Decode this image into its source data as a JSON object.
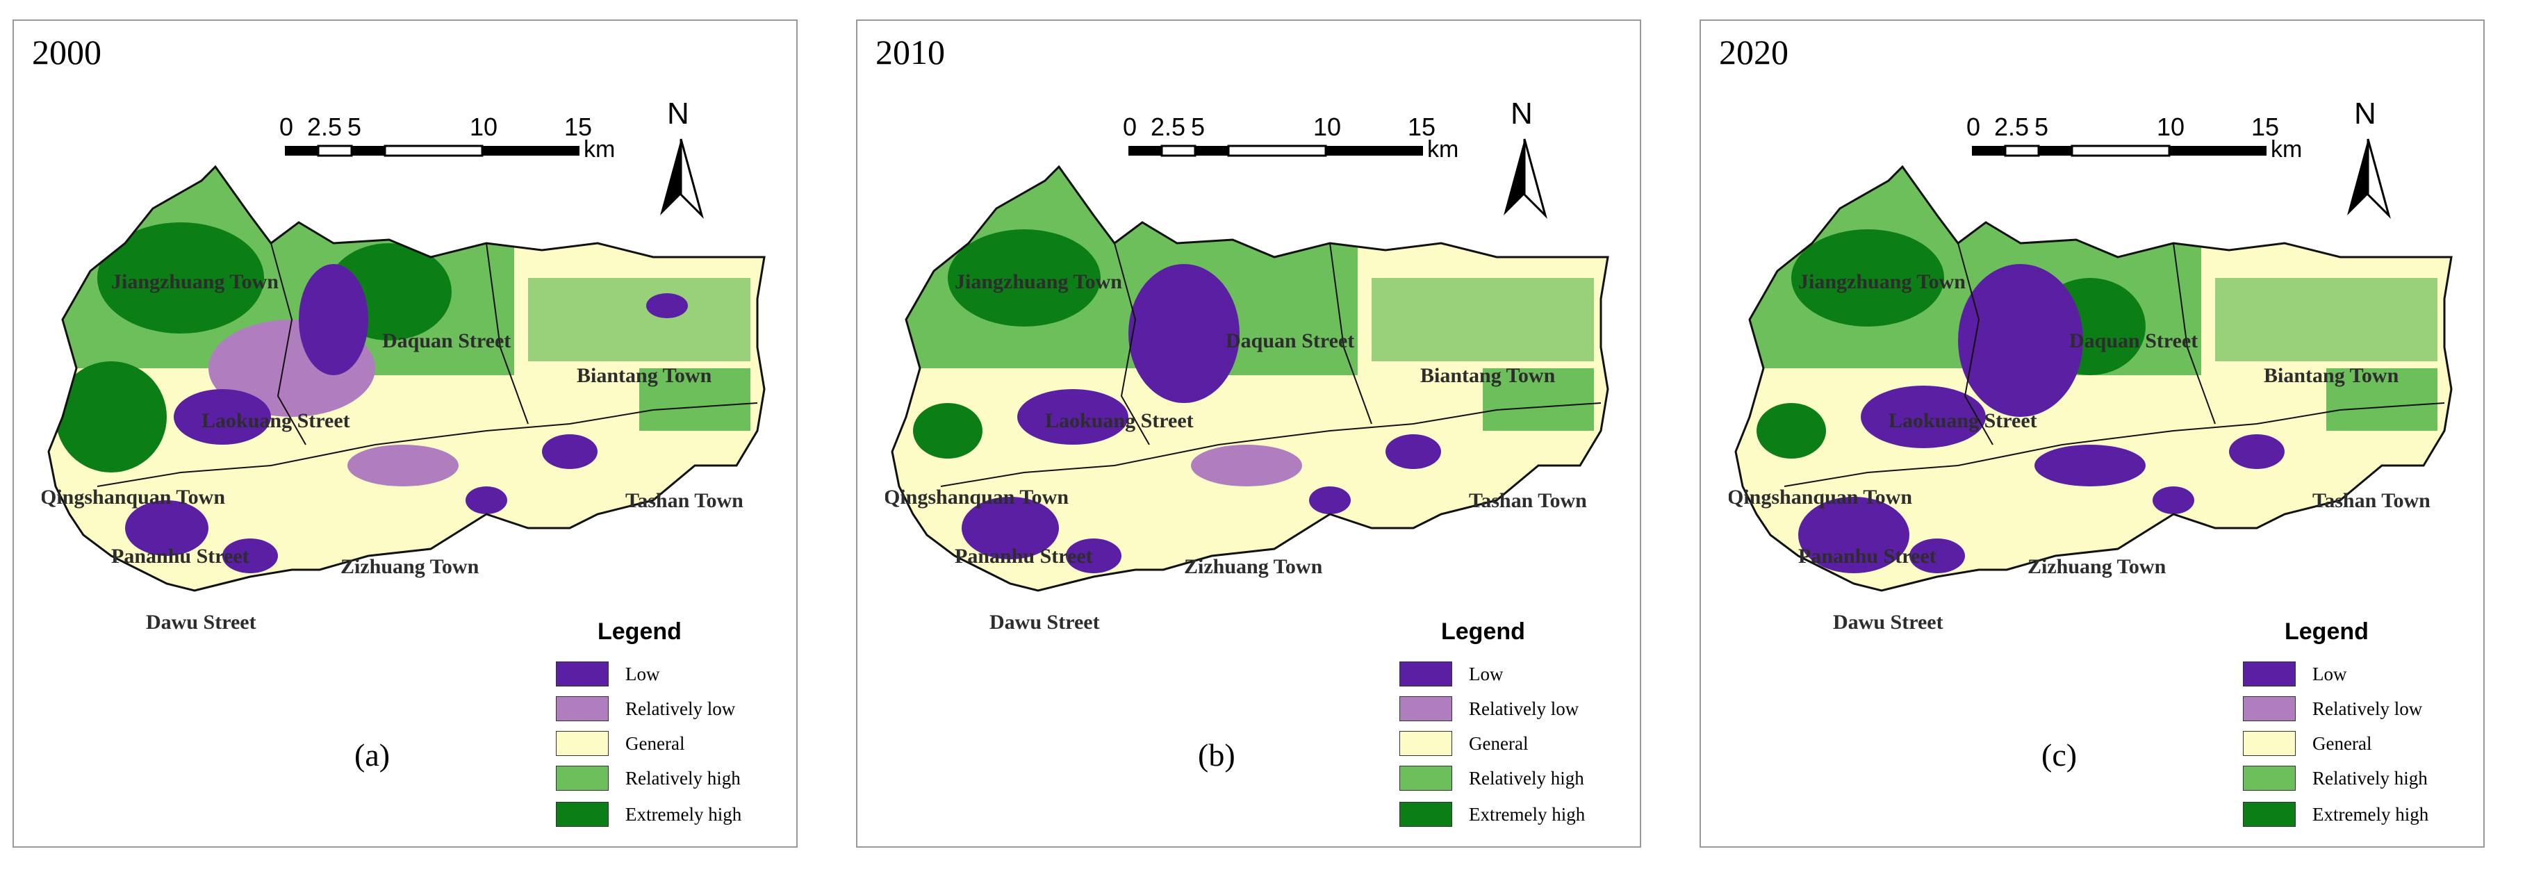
{
  "legend": {
    "title": "Legend",
    "classes": [
      {
        "label": "Low",
        "color": "#5b1fa3"
      },
      {
        "label": "Relatively low",
        "color": "#b07dbf"
      },
      {
        "label": "General",
        "color": "#fdfbc6"
      },
      {
        "label": "Relatively high",
        "color": "#6cbf5a"
      },
      {
        "label": "Extremely high",
        "color": "#0b7f16"
      }
    ]
  },
  "scale": {
    "ticks": [
      "0",
      "2.5",
      "5",
      "10",
      "15"
    ],
    "unit": "km"
  },
  "north_label": "N",
  "towns": [
    "Jiangzhuang Town",
    "Daquan Street",
    "Biantang Town",
    "Laokuang Street",
    "Qingshanquan Town",
    "Tashan Town",
    "Pananhu Street",
    "Zizhuang Town",
    "Dawu Street"
  ],
  "panels": [
    {
      "year": "2000",
      "caption": "(a)"
    },
    {
      "year": "2010",
      "caption": "(b)"
    },
    {
      "year": "2020",
      "caption": "(c)"
    }
  ]
}
